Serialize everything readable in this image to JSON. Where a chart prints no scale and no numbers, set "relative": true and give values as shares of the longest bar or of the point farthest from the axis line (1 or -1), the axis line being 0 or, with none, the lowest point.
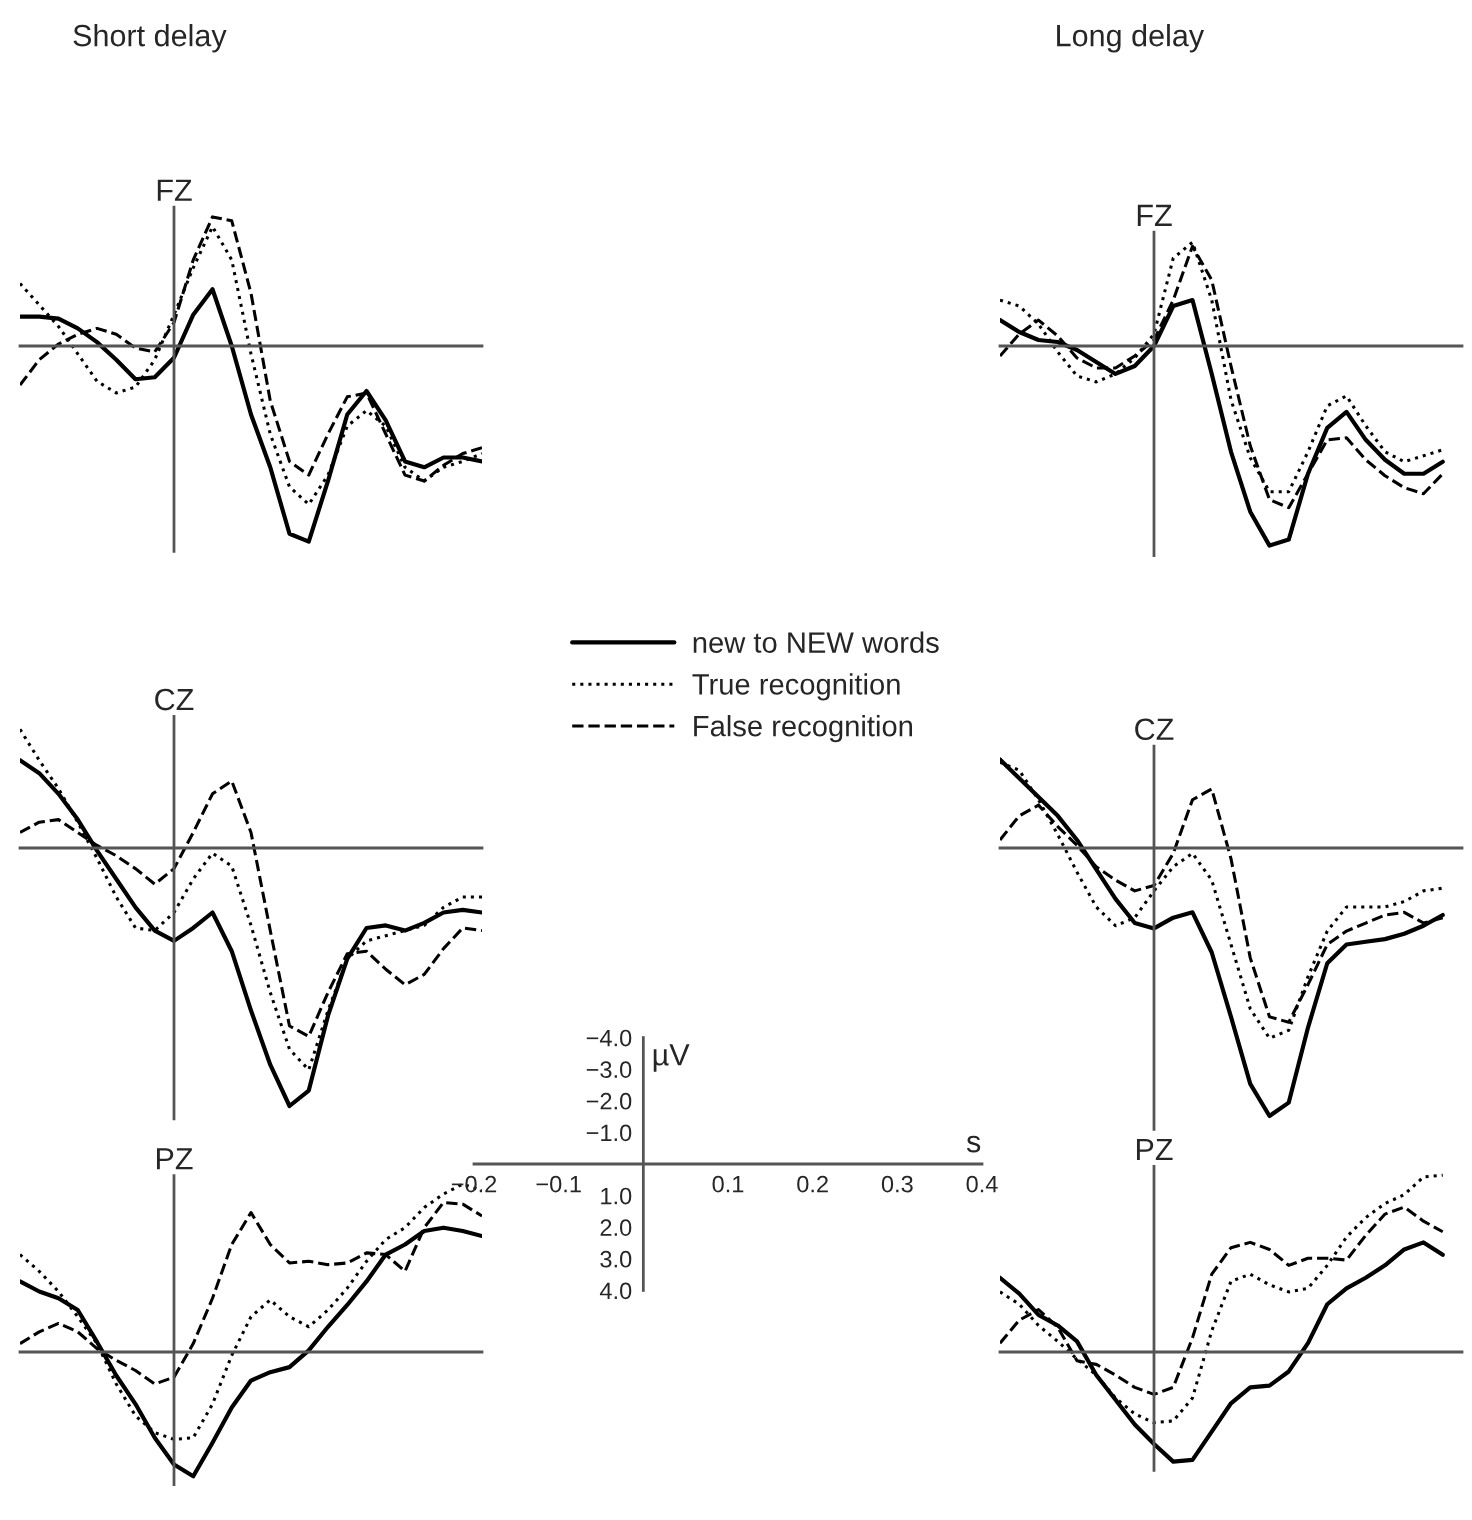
{
  "chart_data": [
    {
      "type": "line",
      "title": "FZ",
      "annotations": [
        "Short delay"
      ],
      "relative": true,
      "categories": [
        null,
        null,
        null,
        null,
        null,
        null,
        null,
        null,
        null,
        null,
        null,
        null,
        null,
        null,
        null,
        null,
        null,
        null,
        null,
        null,
        null,
        null,
        null,
        null,
        null
      ],
      "series": [
        {
          "color": "#000000",
          "line_style": "solid",
          "values": [
            0.15,
            0.15,
            0.14,
            0.09,
            0.02,
            -0.07,
            -0.17,
            -0.16,
            -0.06,
            0.16,
            0.29,
            0,
            -0.35,
            -0.62,
            -0.96,
            -1,
            -0.69,
            -0.35,
            -0.23,
            -0.38,
            -0.59,
            -0.62,
            -0.57,
            -0.57,
            -0.59
          ]
        },
        {
          "color": "#000000",
          "line_style": "dotted",
          "values": [
            0.32,
            0.21,
            0.1,
            -0.04,
            -0.18,
            -0.24,
            -0.21,
            -0.07,
            0.16,
            0.4,
            0.61,
            0.44,
            -0.04,
            -0.45,
            -0.72,
            -0.81,
            -0.66,
            -0.41,
            -0.33,
            -0.41,
            -0.62,
            -0.69,
            -0.62,
            -0.59,
            -0.55
          ]
        },
        {
          "color": "#000000",
          "line_style": "dashed",
          "values": [
            -0.2,
            -0.07,
            0.01,
            0.06,
            0.09,
            0.06,
            -0.01,
            -0.03,
            0.12,
            0.44,
            0.66,
            0.64,
            0.27,
            -0.28,
            -0.59,
            -0.66,
            -0.45,
            -0.26,
            -0.24,
            -0.45,
            -0.66,
            -0.69,
            -0.61,
            -0.55,
            -0.52
          ]
        }
      ]
    },
    {
      "type": "line",
      "title": "FZ",
      "annotations": [
        "Long delay"
      ],
      "relative": true,
      "categories": [
        null,
        null,
        null,
        null,
        null,
        null,
        null,
        null,
        null,
        null,
        null,
        null,
        null,
        null,
        null,
        null,
        null,
        null,
        null,
        null,
        null,
        null,
        null,
        null,
        null
      ],
      "series": [
        {
          "color": "#000000",
          "line_style": "solid",
          "values": [
            0.13,
            0.07,
            0.03,
            0.02,
            -0.02,
            -0.08,
            -0.14,
            -0.1,
            0,
            0.2,
            0.23,
            -0.14,
            -0.53,
            -0.83,
            -1,
            -0.97,
            -0.64,
            -0.41,
            -0.33,
            -0.47,
            -0.57,
            -0.64,
            -0.64,
            -0.58,
            null
          ]
        },
        {
          "color": "#000000",
          "line_style": "dotted",
          "values": [
            0.23,
            0.2,
            0.11,
            -0.03,
            -0.15,
            -0.18,
            -0.14,
            -0.06,
            0.06,
            0.44,
            0.52,
            0.23,
            -0.27,
            -0.56,
            -0.73,
            -0.73,
            -0.53,
            -0.3,
            -0.25,
            -0.4,
            -0.53,
            -0.58,
            -0.55,
            -0.52,
            null
          ]
        },
        {
          "color": "#000000",
          "line_style": "dashed",
          "values": [
            -0.05,
            0.06,
            0.13,
            0.05,
            -0.06,
            -0.11,
            -0.11,
            -0.05,
            0.03,
            0.23,
            0.5,
            0.33,
            -0.1,
            -0.5,
            -0.77,
            -0.81,
            -0.64,
            -0.47,
            -0.46,
            -0.57,
            -0.65,
            -0.71,
            -0.74,
            -0.64,
            null
          ]
        }
      ]
    },
    {
      "type": "line",
      "title": "CZ",
      "legend": "top right",
      "relative": true,
      "categories": [
        null,
        null,
        null,
        null,
        null,
        null,
        null,
        null,
        null,
        null,
        null,
        null,
        null,
        null,
        null,
        null,
        null,
        null,
        null,
        null,
        null,
        null,
        null,
        null,
        null
      ],
      "series": [
        {
          "name": "new to NEW words",
          "color": "#000000",
          "line_style": "solid",
          "values": [
            0.34,
            0.29,
            0.21,
            0.11,
            -0.01,
            -0.12,
            -0.23,
            -0.32,
            -0.36,
            -0.31,
            -0.25,
            -0.4,
            -0.63,
            -0.84,
            -1,
            -0.94,
            -0.65,
            -0.43,
            -0.31,
            -0.3,
            -0.32,
            -0.29,
            -0.25,
            -0.24,
            -0.25
          ]
        },
        {
          "name": "True recognition",
          "color": "#000000",
          "line_style": "dotted",
          "values": [
            0.46,
            0.34,
            0.23,
            0.1,
            -0.04,
            -0.19,
            -0.31,
            -0.32,
            -0.25,
            -0.12,
            -0.02,
            -0.07,
            -0.3,
            -0.56,
            -0.78,
            -0.86,
            -0.63,
            -0.43,
            -0.36,
            -0.34,
            -0.32,
            -0.3,
            -0.23,
            -0.19,
            -0.19
          ]
        },
        {
          "name": "False recognition",
          "color": "#000000",
          "line_style": "dashed",
          "values": [
            0.06,
            0.1,
            0.11,
            0.06,
            0.01,
            -0.03,
            -0.08,
            -0.14,
            -0.08,
            0.06,
            0.21,
            0.26,
            0.06,
            -0.32,
            -0.69,
            -0.73,
            -0.56,
            -0.41,
            -0.4,
            -0.47,
            -0.53,
            -0.49,
            -0.39,
            -0.31,
            -0.32
          ]
        }
      ]
    },
    {
      "type": "line",
      "title": "CZ",
      "relative": true,
      "categories": [
        null,
        null,
        null,
        null,
        null,
        null,
        null,
        null,
        null,
        null,
        null,
        null,
        null,
        null,
        null,
        null,
        null,
        null,
        null,
        null,
        null,
        null,
        null,
        null,
        null
      ],
      "series": [
        {
          "color": "#000000",
          "line_style": "solid",
          "values": [
            0.33,
            0.26,
            0.19,
            0.12,
            0.03,
            -0.08,
            -0.19,
            -0.28,
            -0.3,
            -0.26,
            -0.24,
            -0.39,
            -0.63,
            -0.88,
            -1,
            -0.95,
            -0.67,
            -0.43,
            -0.36,
            -0.35,
            -0.34,
            -0.32,
            -0.29,
            -0.25,
            null
          ]
        },
        {
          "color": "#000000",
          "line_style": "dotted",
          "values": [
            0.32,
            0.29,
            0.18,
            0.05,
            -0.09,
            -0.22,
            -0.29,
            -0.26,
            -0.16,
            -0.07,
            -0.02,
            -0.12,
            -0.36,
            -0.6,
            -0.71,
            -0.68,
            -0.48,
            -0.31,
            -0.22,
            -0.22,
            -0.22,
            -0.2,
            -0.16,
            -0.15,
            null
          ]
        },
        {
          "color": "#000000",
          "line_style": "dashed",
          "values": [
            0.03,
            0.12,
            0.16,
            0.08,
            0.01,
            -0.07,
            -0.12,
            -0.16,
            -0.14,
            -0.02,
            0.18,
            0.22,
            -0.04,
            -0.41,
            -0.63,
            -0.65,
            -0.51,
            -0.36,
            -0.31,
            -0.28,
            -0.25,
            -0.24,
            -0.28,
            -0.26,
            null
          ]
        }
      ]
    },
    {
      "type": "line",
      "title": "PZ",
      "relative": true,
      "categories": [
        null,
        null,
        null,
        null,
        null,
        null,
        null,
        null,
        null,
        null,
        null,
        null,
        null,
        null,
        null,
        null,
        null,
        null,
        null,
        null,
        null,
        null,
        null,
        null,
        null
      ],
      "series": [
        {
          "color": "#000000",
          "line_style": "solid",
          "values": [
            0.42,
            0.36,
            0.32,
            0.25,
            0.06,
            -0.14,
            -0.31,
            -0.51,
            -0.67,
            -0.74,
            -0.54,
            -0.33,
            -0.17,
            -0.12,
            -0.09,
            0.01,
            0.15,
            0.28,
            0.42,
            0.58,
            0.64,
            0.72,
            0.74,
            0.72,
            0.69
          ]
        },
        {
          "color": "#000000",
          "line_style": "dotted",
          "values": [
            0.58,
            0.48,
            0.36,
            0.21,
            0.05,
            -0.19,
            -0.38,
            -0.48,
            -0.52,
            -0.51,
            -0.31,
            -0.02,
            0.21,
            0.31,
            0.21,
            0.15,
            0.25,
            0.38,
            0.54,
            0.67,
            0.74,
            0.86,
            0.94,
            1,
            0.96
          ]
        },
        {
          "color": "#000000",
          "line_style": "dashed",
          "values": [
            0.05,
            0.12,
            0.17,
            0.12,
            0.02,
            -0.05,
            -0.11,
            -0.19,
            -0.15,
            0.05,
            0.32,
            0.64,
            0.83,
            0.64,
            0.53,
            0.54,
            0.52,
            0.53,
            0.59,
            0.58,
            0.48,
            0.74,
            0.89,
            0.88,
            0.81
          ]
        }
      ]
    },
    {
      "type": "line",
      "xlabel": "s",
      "ylabel": "µV",
      "xlim": [
        -0.2,
        0.4
      ],
      "xticks": [
        {
          "value": -0.2,
          "label": "−0.2"
        },
        {
          "value": -0.1,
          "label": "−0.1"
        },
        {
          "value": 0.1,
          "label": "0.1"
        },
        {
          "value": 0.2,
          "label": "0.2"
        },
        {
          "value": 0.3,
          "label": "0.3"
        },
        {
          "value": 0.4,
          "label": "0.4"
        }
      ],
      "ylim": [
        4,
        -4
      ],
      "yticks": [
        {
          "value": -4,
          "label": "−4.0"
        },
        {
          "value": -3,
          "label": "−3.0"
        },
        {
          "value": -2,
          "label": "−2.0"
        },
        {
          "value": -1,
          "label": "−1.0"
        },
        {
          "value": 1,
          "label": "1.0"
        },
        {
          "value": 2,
          "label": "2.0"
        },
        {
          "value": 3,
          "label": "3.0"
        },
        {
          "value": 4,
          "label": "4.0"
        }
      ]
    },
    {
      "type": "line",
      "title": "PZ",
      "relative": true,
      "categories": [
        null,
        null,
        null,
        null,
        null,
        null,
        null,
        null,
        null,
        null,
        null,
        null,
        null,
        null,
        null,
        null,
        null,
        null,
        null,
        null,
        null,
        null,
        null,
        null,
        null
      ],
      "series": [
        {
          "color": "#000000",
          "line_style": "solid",
          "values": [
            0.42,
            0.33,
            0.21,
            0.15,
            0.06,
            -0.13,
            -0.27,
            -0.41,
            -0.52,
            -0.62,
            -0.61,
            -0.45,
            -0.29,
            -0.2,
            -0.19,
            -0.11,
            0.05,
            0.27,
            0.36,
            0.42,
            0.49,
            0.58,
            0.62,
            0.55,
            null
          ]
        },
        {
          "color": "#000000",
          "line_style": "dotted",
          "values": [
            0.34,
            0.27,
            0.15,
            0.06,
            -0.04,
            -0.13,
            -0.26,
            -0.35,
            -0.4,
            -0.39,
            -0.26,
            0.12,
            0.4,
            0.44,
            0.38,
            0.34,
            0.36,
            0.49,
            0.65,
            0.76,
            0.84,
            0.89,
            0.99,
            1,
            null
          ]
        },
        {
          "color": "#000000",
          "line_style": "dashed",
          "values": [
            0.05,
            0.18,
            0.24,
            0.14,
            -0.05,
            -0.07,
            -0.13,
            -0.2,
            -0.24,
            -0.2,
            0.08,
            0.44,
            0.59,
            0.62,
            0.58,
            0.49,
            0.53,
            0.53,
            0.52,
            0.66,
            0.78,
            0.82,
            0.74,
            0.68,
            null
          ]
        }
      ]
    }
  ]
}
